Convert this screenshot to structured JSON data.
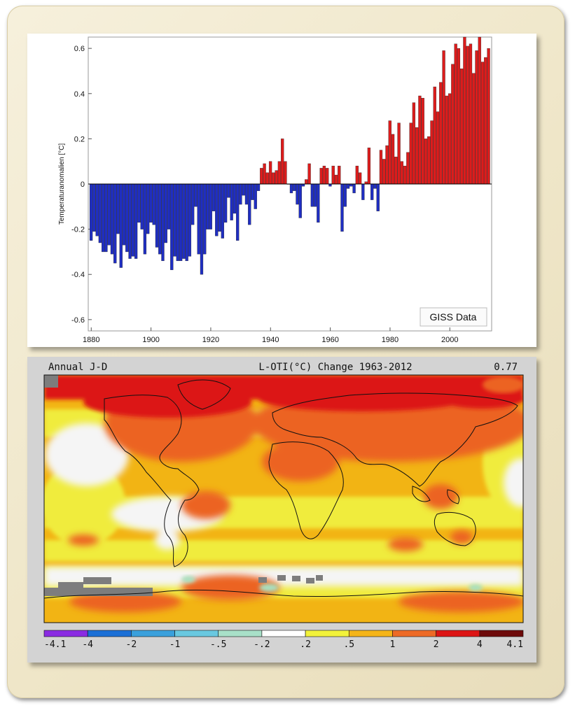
{
  "chart_data": [
    {
      "type": "bar",
      "ylabel": "Temperaturanomalien [°C]",
      "xlabel": "",
      "ylim": [
        -0.65,
        0.65
      ],
      "xlim": [
        1879,
        2014
      ],
      "yticks": [
        -0.6,
        -0.4,
        -0.2,
        0,
        0.2,
        0.4,
        0.6
      ],
      "yticklabels": [
        "-0.6",
        "-0.4",
        "-0.2",
        "0",
        "0.2",
        "0.4",
        "0.6"
      ],
      "xticks": [
        1880,
        1900,
        1920,
        1940,
        1960,
        1980,
        2000
      ],
      "annotation": "GISS Data",
      "positive_color": "#dd1c1c",
      "negative_color": "#1f2ec2",
      "x": [
        1880,
        1881,
        1882,
        1883,
        1884,
        1885,
        1886,
        1887,
        1888,
        1889,
        1890,
        1891,
        1892,
        1893,
        1894,
        1895,
        1896,
        1897,
        1898,
        1899,
        1900,
        1901,
        1902,
        1903,
        1904,
        1905,
        1906,
        1907,
        1908,
        1909,
        1910,
        1911,
        1912,
        1913,
        1914,
        1915,
        1916,
        1917,
        1918,
        1919,
        1920,
        1921,
        1922,
        1923,
        1924,
        1925,
        1926,
        1927,
        1928,
        1929,
        1930,
        1931,
        1932,
        1933,
        1934,
        1935,
        1936,
        1937,
        1938,
        1939,
        1940,
        1941,
        1942,
        1943,
        1944,
        1945,
        1946,
        1947,
        1948,
        1949,
        1950,
        1951,
        1952,
        1953,
        1954,
        1955,
        1956,
        1957,
        1958,
        1959,
        1960,
        1961,
        1962,
        1963,
        1964,
        1965,
        1966,
        1967,
        1968,
        1969,
        1970,
        1971,
        1972,
        1973,
        1974,
        1975,
        1976,
        1977,
        1978,
        1979,
        1980,
        1981,
        1982,
        1983,
        1984,
        1985,
        1986,
        1987,
        1988,
        1989,
        1990,
        1991,
        1992,
        1993,
        1994,
        1995,
        1996,
        1997,
        1998,
        1999,
        2000,
        2001,
        2002,
        2003,
        2004,
        2005,
        2006,
        2007,
        2008,
        2009,
        2010,
        2011,
        2012,
        2013
      ],
      "values": [
        -0.25,
        -0.21,
        -0.23,
        -0.26,
        -0.3,
        -0.3,
        -0.27,
        -0.31,
        -0.35,
        -0.22,
        -0.37,
        -0.27,
        -0.3,
        -0.33,
        -0.32,
        -0.33,
        -0.17,
        -0.2,
        -0.31,
        -0.22,
        -0.17,
        -0.18,
        -0.28,
        -0.31,
        -0.34,
        -0.26,
        -0.2,
        -0.38,
        -0.32,
        -0.34,
        -0.34,
        -0.33,
        -0.34,
        -0.32,
        -0.18,
        -0.1,
        -0.31,
        -0.4,
        -0.31,
        -0.2,
        -0.2,
        -0.12,
        -0.23,
        -0.21,
        -0.24,
        -0.17,
        -0.06,
        -0.16,
        -0.13,
        -0.25,
        -0.09,
        -0.05,
        -0.09,
        -0.18,
        -0.07,
        -0.11,
        -0.03,
        0.07,
        0.09,
        0.05,
        0.1,
        0.05,
        0.06,
        0.1,
        0.2,
        0.1,
        0.0,
        -0.04,
        -0.03,
        -0.09,
        -0.15,
        -0.01,
        0.02,
        0.09,
        -0.1,
        -0.1,
        -0.17,
        0.07,
        0.08,
        0.07,
        -0.01,
        0.08,
        0.04,
        0.08,
        -0.21,
        -0.1,
        -0.02,
        -0.01,
        -0.04,
        0.08,
        0.05,
        -0.07,
        0.01,
        0.16,
        -0.07,
        -0.02,
        -0.12,
        0.15,
        0.11,
        0.17,
        0.28,
        0.22,
        0.12,
        0.27,
        0.1,
        0.08,
        0.14,
        0.27,
        0.36,
        0.25,
        0.39,
        0.38,
        0.2,
        0.21,
        0.28,
        0.43,
        0.32,
        0.45,
        0.59,
        0.39,
        0.4,
        0.53,
        0.62,
        0.6,
        0.51,
        0.65,
        0.61,
        0.62,
        0.49,
        0.59,
        0.65,
        0.54,
        0.56,
        0.6
      ]
    },
    {
      "type": "heatmap",
      "title_left": "Annual J-D",
      "title": "L-OTI(°C) Change 1963-2012",
      "title_right": "0.77",
      "legend_ticks": [
        "-4.1",
        "-4",
        "-2",
        "-1",
        "-.5",
        "-.2",
        ".2",
        ".5",
        "1",
        "2",
        "4",
        "4.1"
      ],
      "legend_colors": [
        "#8a2be2",
        "#1a6fd6",
        "#3aa0dc",
        "#69c8e0",
        "#a8e0c8",
        "#ffffff",
        "#f2f23a",
        "#f4b418",
        "#ed6a26",
        "#dc1414",
        "#6e0a0a"
      ]
    }
  ]
}
